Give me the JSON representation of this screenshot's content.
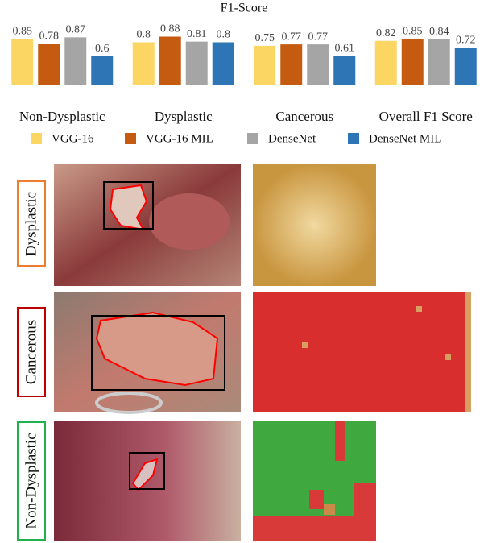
{
  "chart_data": {
    "type": "bar",
    "title": "F1-Score",
    "categories": [
      "Non-Dysplastic",
      "Dysplastic",
      "Cancerous",
      "Overall F1 Score"
    ],
    "series": [
      {
        "name": "VGG-16",
        "color": "#fcd663",
        "values": [
          0.85,
          0.8,
          0.75,
          0.82
        ]
      },
      {
        "name": "VGG-16 MIL",
        "color": "#c55a11",
        "values": [
          0.78,
          0.88,
          0.77,
          0.85
        ]
      },
      {
        "name": "DenseNet",
        "color": "#a5a5a5",
        "values": [
          0.87,
          0.81,
          0.77,
          0.84
        ]
      },
      {
        "name": "DenseNet MIL",
        "color": "#2e75b6",
        "values": [
          0.6,
          0.8,
          0.61,
          0.72
        ]
      }
    ],
    "ylim": [
      0.2,
      1.0
    ]
  },
  "panels": [
    {
      "label": "Dysplastic"
    },
    {
      "label": "Cancerous"
    },
    {
      "label": "Non-Dysplastic"
    }
  ]
}
